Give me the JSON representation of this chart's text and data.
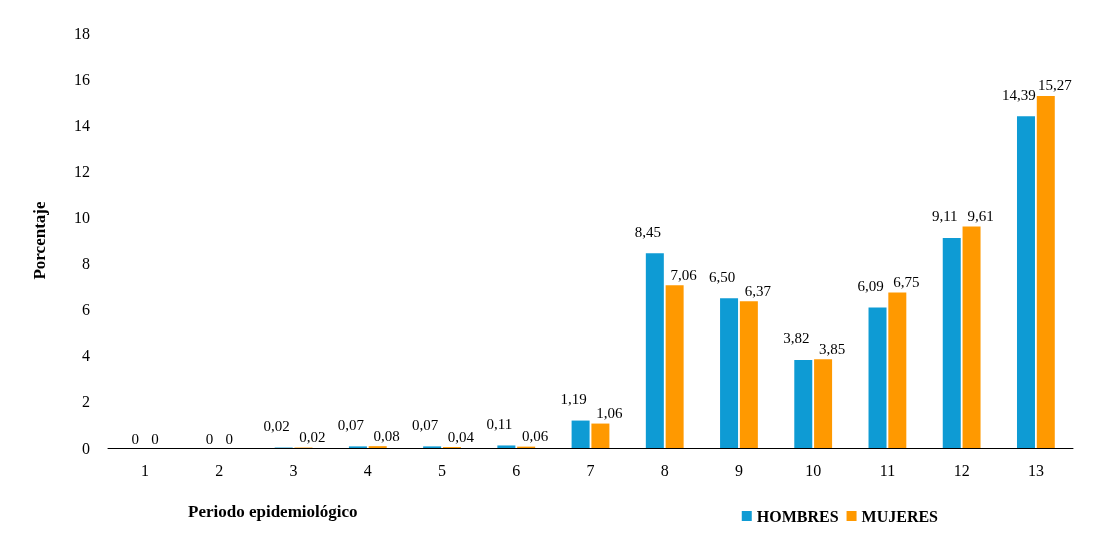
{
  "chart_data": {
    "type": "bar",
    "xlabel": "Periodo epidemiológico",
    "ylabel": "Porcentaje",
    "categories": [
      "1",
      "2",
      "3",
      "4",
      "5",
      "6",
      "7",
      "8",
      "9",
      "10",
      "11",
      "12",
      "13"
    ],
    "series": [
      {
        "name": "HOMBRES",
        "color": "#0e9bd4",
        "values": [
          0,
          0,
          0.02,
          0.07,
          0.07,
          0.11,
          1.19,
          8.45,
          6.5,
          3.82,
          6.09,
          9.11,
          14.39
        ],
        "value_labels": [
          "0",
          "0",
          "0,02",
          "0,07",
          "0,07",
          "0,11",
          "1,19",
          "8,45",
          "6,50",
          "3,82",
          "6,09",
          "9,11",
          "14,39"
        ]
      },
      {
        "name": "MUJERES",
        "color": "#ff9900",
        "values": [
          0,
          0,
          0.02,
          0.08,
          0.04,
          0.06,
          1.06,
          7.06,
          6.37,
          3.85,
          6.75,
          9.61,
          15.27
        ],
        "value_labels": [
          "0",
          "0",
          "0,02",
          "0,08",
          "0,04",
          "0,06",
          "1,06",
          "7,06",
          "6,37",
          "3,85",
          "6,75",
          "9,61",
          "15,27"
        ]
      }
    ],
    "ylim": [
      0,
      18
    ],
    "yticks": [
      0,
      2,
      4,
      6,
      8,
      10,
      12,
      14,
      16,
      18
    ],
    "grid": false,
    "legend": "bottom right"
  }
}
